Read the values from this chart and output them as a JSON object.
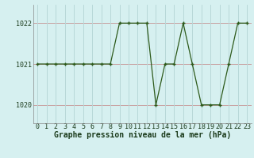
{
  "x": [
    0,
    1,
    2,
    3,
    4,
    5,
    6,
    7,
    8,
    9,
    10,
    11,
    12,
    13,
    14,
    15,
    16,
    17,
    18,
    19,
    20,
    21,
    22,
    23
  ],
  "y": [
    1021,
    1021,
    1021,
    1021,
    1021,
    1021,
    1021,
    1021,
    1021,
    1022,
    1022,
    1022,
    1022,
    1020,
    1021,
    1021,
    1022,
    1021,
    1020,
    1020,
    1020,
    1021,
    1022,
    1022
  ],
  "line_color": "#2d5a1b",
  "marker": "+",
  "marker_color": "#2d5a1b",
  "bg_color": "#d6f0f0",
  "grid_color_h": "#c8a0a0",
  "grid_color_v": "#b8d8d8",
  "xlabel": "Graphe pression niveau de la mer (hPa)",
  "xlabel_fontsize": 7,
  "xlabel_bold": true,
  "ylim": [
    1019.55,
    1022.45
  ],
  "yticks": [
    1020,
    1021,
    1022
  ],
  "xticks": [
    0,
    1,
    2,
    3,
    4,
    5,
    6,
    7,
    8,
    9,
    10,
    11,
    12,
    13,
    14,
    15,
    16,
    17,
    18,
    19,
    20,
    21,
    22,
    23
  ],
  "tick_fontsize": 6,
  "figsize": [
    3.2,
    2.0
  ],
  "dpi": 100
}
